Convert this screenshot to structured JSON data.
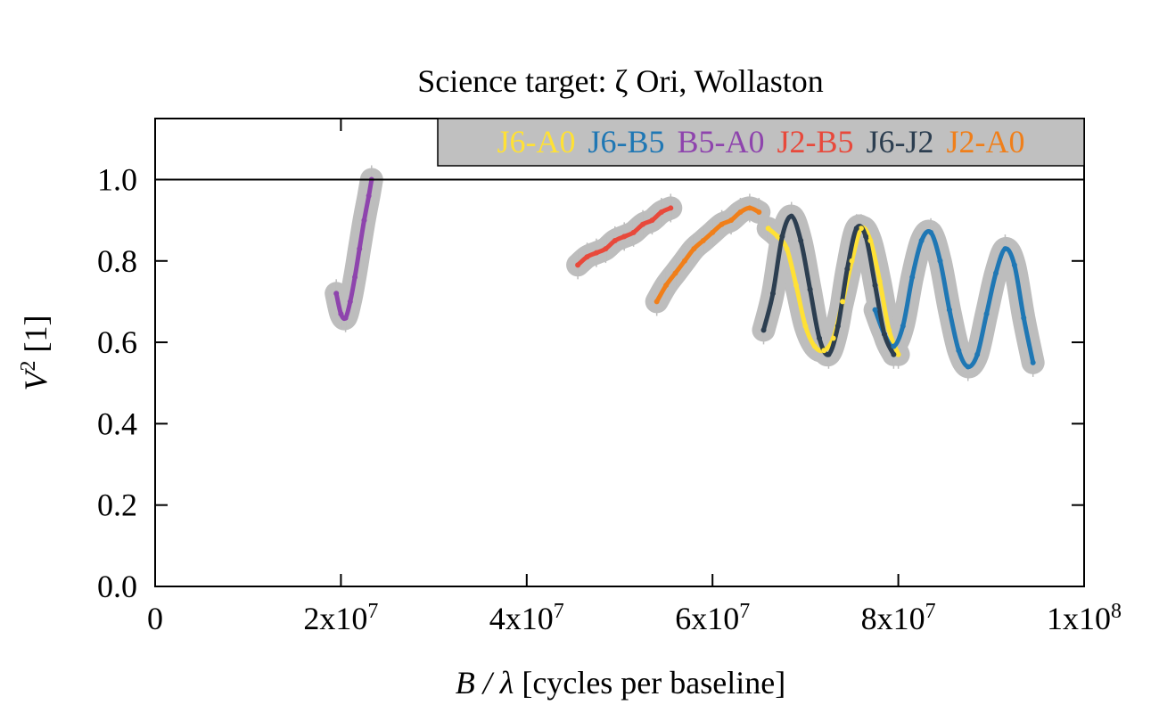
{
  "chart_data": {
    "type": "scatter",
    "title": "Science target: ζ Ori, Wollaston",
    "xlabel": {
      "italic": "B / λ",
      "rest": " [cycles per baseline]"
    },
    "ylabel": {
      "italic": "V",
      "sup": "2",
      "rest": " [1]"
    },
    "xlim": [
      0,
      100000000
    ],
    "ylim": [
      0,
      1.15
    ],
    "x_ticks": [
      {
        "value": 0,
        "base": "0",
        "exp": ""
      },
      {
        "value": 20000000,
        "base": "2x10",
        "exp": "7"
      },
      {
        "value": 40000000,
        "base": "4x10",
        "exp": "7"
      },
      {
        "value": 60000000,
        "base": "6x10",
        "exp": "7"
      },
      {
        "value": 80000000,
        "base": "8x10",
        "exp": "7"
      },
      {
        "value": 100000000,
        "base": "1x10",
        "exp": "8"
      }
    ],
    "y_ticks": [
      {
        "value": 0.0,
        "label": "0.0"
      },
      {
        "value": 0.2,
        "label": "0.2"
      },
      {
        "value": 0.4,
        "label": "0.4"
      },
      {
        "value": 0.6,
        "label": "0.6"
      },
      {
        "value": 0.8,
        "label": "0.8"
      },
      {
        "value": 1.0,
        "label": "1.0"
      }
    ],
    "reference_line": 1.0,
    "error_bar_color": "#bdbdbd",
    "legend_placement": "top-right",
    "legend_background": "#c0c0c0",
    "series": [
      {
        "name": "J6-A0",
        "color": "#ffe135",
        "x": [
          66000000,
          67000000,
          68000000,
          69000000,
          70000000,
          71000000,
          72000000,
          73000000,
          74000000,
          75000000,
          76000000,
          77000000,
          78000000,
          79000000,
          80000000
        ],
        "y": [
          0.88,
          0.86,
          0.83,
          0.74,
          0.64,
          0.59,
          0.58,
          0.61,
          0.7,
          0.8,
          0.88,
          0.85,
          0.75,
          0.63,
          0.57
        ]
      },
      {
        "name": "J6-B5",
        "color": "#1f77b4",
        "x": [
          77500000,
          78500000,
          79500000,
          80500000,
          81500000,
          82500000,
          83500000,
          84500000,
          85500000,
          86500000,
          87500000,
          88500000,
          89500000,
          90500000,
          91500000,
          92500000,
          93500000,
          94500000
        ],
        "y": [
          0.68,
          0.62,
          0.59,
          0.64,
          0.76,
          0.85,
          0.87,
          0.8,
          0.68,
          0.58,
          0.54,
          0.57,
          0.67,
          0.77,
          0.83,
          0.79,
          0.66,
          0.55
        ]
      },
      {
        "name": "B5-A0",
        "color": "#8e44ad",
        "x": [
          19500000,
          20000000,
          20500000,
          21000000,
          21500000,
          22000000,
          22500000,
          23000000,
          23300000
        ],
        "y": [
          0.72,
          0.67,
          0.66,
          0.7,
          0.76,
          0.83,
          0.9,
          0.96,
          1.0
        ]
      },
      {
        "name": "J2-B5",
        "color": "#e8493b",
        "x": [
          45500000,
          46500000,
          47500000,
          48500000,
          49500000,
          50500000,
          51500000,
          52500000,
          53500000,
          54500000,
          55500000
        ],
        "y": [
          0.79,
          0.81,
          0.82,
          0.83,
          0.85,
          0.86,
          0.87,
          0.89,
          0.9,
          0.92,
          0.93
        ]
      },
      {
        "name": "J6-J2",
        "color": "#2c3e50",
        "x": [
          65500000,
          66500000,
          67500000,
          68500000,
          69500000,
          70500000,
          71500000,
          72500000,
          73500000,
          74500000,
          75500000,
          76500000,
          77500000,
          78500000,
          79500000
        ],
        "y": [
          0.63,
          0.72,
          0.86,
          0.91,
          0.85,
          0.73,
          0.61,
          0.57,
          0.64,
          0.78,
          0.88,
          0.86,
          0.74,
          0.62,
          0.57
        ]
      },
      {
        "name": "J2-A0",
        "color": "#f07f1a",
        "x": [
          54000000,
          55000000,
          56000000,
          57000000,
          58000000,
          59000000,
          60000000,
          61000000,
          62000000,
          63000000,
          64000000,
          65000000
        ],
        "y": [
          0.7,
          0.74,
          0.77,
          0.8,
          0.83,
          0.85,
          0.87,
          0.89,
          0.9,
          0.92,
          0.93,
          0.92
        ]
      }
    ]
  }
}
